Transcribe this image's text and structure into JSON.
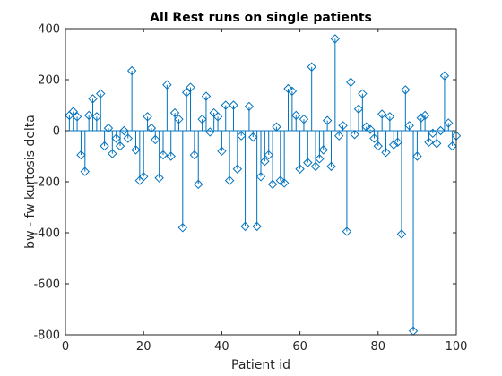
{
  "chart_data": {
    "type": "stem",
    "title": "All Rest runs on single patients",
    "xlabel": "Patient id",
    "ylabel": "bw - fw kurtosis delta",
    "xlim": [
      0,
      100
    ],
    "ylim": [
      -800,
      400
    ],
    "xticks": [
      0,
      20,
      40,
      60,
      80,
      100
    ],
    "yticks": [
      -800,
      -600,
      -400,
      -200,
      0,
      200,
      400
    ],
    "grid": false,
    "stem_color": "#0072bd",
    "x": [
      1,
      2,
      3,
      4,
      5,
      6,
      7,
      8,
      9,
      10,
      11,
      12,
      13,
      14,
      15,
      16,
      17,
      18,
      19,
      20,
      21,
      22,
      23,
      24,
      25,
      26,
      27,
      28,
      29,
      30,
      31,
      32,
      33,
      34,
      35,
      36,
      37,
      38,
      39,
      40,
      41,
      42,
      43,
      44,
      45,
      46,
      47,
      48,
      49,
      50,
      51,
      52,
      53,
      54,
      55,
      56,
      57,
      58,
      59,
      60,
      61,
      62,
      63,
      64,
      65,
      66,
      67,
      68,
      69,
      70,
      71,
      72,
      73,
      74,
      75,
      76,
      77,
      78,
      79,
      80,
      81,
      82,
      83,
      84,
      85,
      86,
      87,
      88,
      89,
      90,
      91,
      92,
      93,
      94,
      95,
      96,
      97,
      98,
      99,
      100
    ],
    "values": [
      60,
      75,
      55,
      -95,
      -160,
      60,
      125,
      55,
      145,
      -60,
      10,
      -90,
      -30,
      -60,
      0,
      -30,
      235,
      -75,
      -195,
      -180,
      55,
      10,
      -35,
      -185,
      -95,
      180,
      -100,
      70,
      45,
      -380,
      150,
      170,
      -95,
      -210,
      45,
      135,
      -5,
      70,
      55,
      -80,
      100,
      -195,
      100,
      -150,
      -20,
      -375,
      95,
      -25,
      -375,
      -180,
      -120,
      -95,
      -210,
      15,
      -195,
      -205,
      165,
      155,
      60,
      -150,
      45,
      -125,
      250,
      -140,
      -110,
      -75,
      40,
      -140,
      360,
      -20,
      20,
      -395,
      190,
      -15,
      85,
      145,
      15,
      5,
      -30,
      -60,
      65,
      -85,
      55,
      -55,
      -45,
      -405,
      160,
      20,
      -785,
      -100,
      50,
      60,
      -45,
      -10,
      -50,
      0,
      215,
      30,
      -60,
      -20
    ]
  }
}
